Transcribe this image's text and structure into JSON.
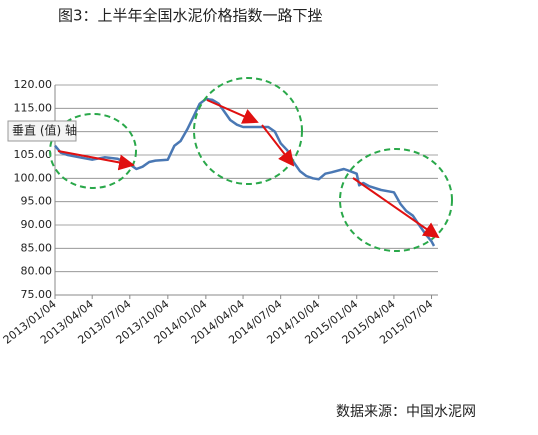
{
  "chart_data": {
    "type": "line",
    "title": "图3：上半年全国水泥价格指数一路下挫",
    "source": "数据来源：中国水泥网",
    "annotation": "垂直 (值) 轴",
    "color": "#4a78b4",
    "grid": true,
    "x": [
      "2013/01/04",
      "2013/01/18",
      "2013/02/04",
      "2013/03/04",
      "2013/04/04",
      "2013/05/04",
      "2013/06/04",
      "2013/07/04",
      "2013/07/20",
      "2013/08/04",
      "2013/08/20",
      "2013/09/04",
      "2013/10/04",
      "2013/10/20",
      "2013/11/04",
      "2013/11/20",
      "2013/12/04",
      "2013/12/20",
      "2014/01/04",
      "2014/01/20",
      "2014/02/04",
      "2014/02/20",
      "2014/03/04",
      "2014/03/20",
      "2014/04/04",
      "2014/05/04",
      "2014/06/04",
      "2014/06/20",
      "2014/07/04",
      "2014/07/20",
      "2014/08/04",
      "2014/08/20",
      "2014/09/04",
      "2014/09/20",
      "2014/10/04",
      "2014/10/20",
      "2014/11/04",
      "2014/12/04",
      "2014/12/20",
      "2015/01/04",
      "2015/01/10",
      "2015/01/20",
      "2015/02/04",
      "2015/03/04",
      "2015/04/04",
      "2015/04/20",
      "2015/05/04",
      "2015/05/20",
      "2015/06/04",
      "2015/06/20",
      "2015/07/04",
      "2015/07/10"
    ],
    "values": [
      107,
      105.5,
      105,
      104.5,
      104,
      104.5,
      104.2,
      103,
      102,
      102.5,
      103.5,
      103.8,
      104,
      107,
      108,
      110.5,
      113,
      116,
      117,
      116.8,
      116,
      114,
      112.5,
      111.5,
      111,
      111,
      111,
      110,
      107.5,
      106,
      103.5,
      101.5,
      100.5,
      100,
      99.8,
      101,
      101.3,
      102,
      101.5,
      101,
      98.5,
      99,
      98.3,
      97.5,
      97,
      94.5,
      93,
      92,
      90,
      88,
      86.5,
      85.5
    ],
    "xlim": [
      "2013/01/04",
      "2015/07/10"
    ],
    "xticks": [
      "2013/01/04",
      "2013/04/04",
      "2013/07/04",
      "2013/10/04",
      "2014/01/04",
      "2014/04/04",
      "2014/07/04",
      "2014/10/04",
      "2015/01/04",
      "2015/04/04",
      "2015/07/04"
    ],
    "ylim": [
      75,
      120
    ],
    "yticks": [
      {
        "value": 75,
        "label": "75.00"
      },
      {
        "value": 80,
        "label": "80.00"
      },
      {
        "value": 85,
        "label": "85.00"
      },
      {
        "value": 90,
        "label": "90.00"
      },
      {
        "value": 95,
        "label": "95.00"
      },
      {
        "value": 100,
        "label": "100.00"
      },
      {
        "value": 105,
        "label": "105.00"
      },
      {
        "value": 110,
        "label": "110.00"
      },
      {
        "value": 115,
        "label": "115.00"
      },
      {
        "value": 120,
        "label": "120.00"
      }
    ]
  }
}
